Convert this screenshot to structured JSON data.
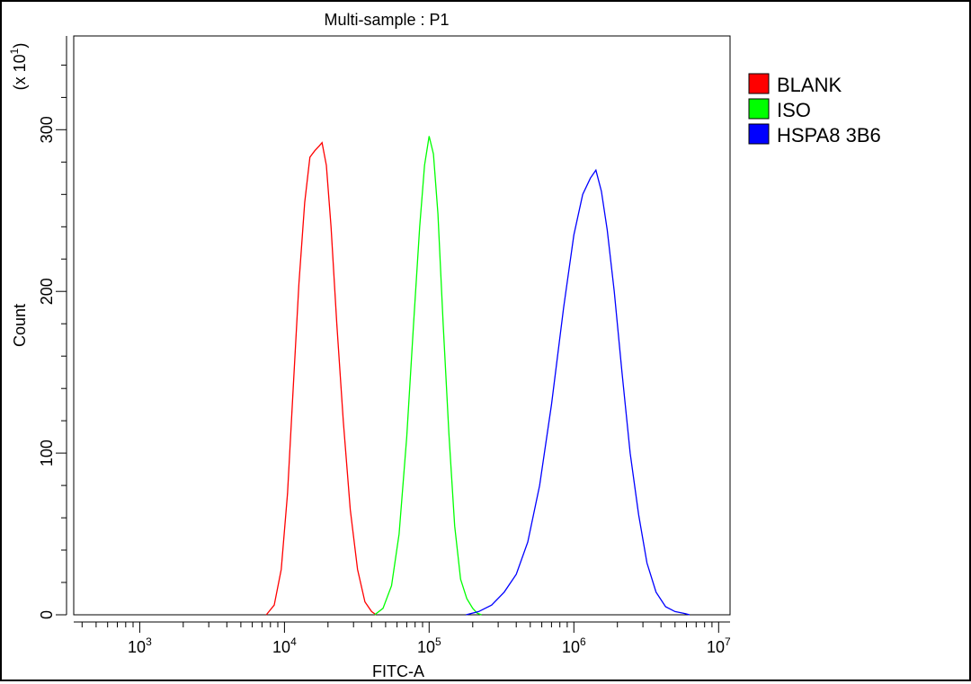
{
  "chart_data": {
    "type": "line",
    "title": "Multi-sample : P1",
    "xlabel": "FITC-A",
    "ylabel": "Count",
    "y_multiplier_label": "(x 10",
    "y_multiplier_exp": "1",
    "y_multiplier_close": ")",
    "x_scale": "log",
    "xlim": [
      350,
      12000000
    ],
    "ylim": [
      0,
      358
    ],
    "x_ticks": [
      {
        "value": 1000,
        "base": "10",
        "exp": "3"
      },
      {
        "value": 10000,
        "base": "10",
        "exp": "4"
      },
      {
        "value": 100000,
        "base": "10",
        "exp": "5"
      },
      {
        "value": 1000000,
        "base": "10",
        "exp": "6"
      },
      {
        "value": 10000000,
        "base": "10",
        "exp": "7"
      }
    ],
    "y_ticks": [
      {
        "value": 0,
        "label": "0"
      },
      {
        "value": 100,
        "label": "100"
      },
      {
        "value": 200,
        "label": "200"
      },
      {
        "value": 300,
        "label": "300"
      }
    ],
    "grid": false,
    "legend_position": "right",
    "series": [
      {
        "name": "BLANK",
        "color": "#ff0000",
        "x": [
          7500,
          8500,
          9500,
          10500,
          11500,
          12600,
          13800,
          15000,
          16200,
          17400,
          18200,
          19500,
          21000,
          23000,
          25500,
          28500,
          32000,
          36000,
          40000,
          43000
        ],
        "y": [
          0,
          6,
          28,
          75,
          140,
          205,
          255,
          283,
          287,
          290,
          292,
          278,
          240,
          180,
          120,
          65,
          28,
          8,
          2,
          0
        ]
      },
      {
        "name": "ISO",
        "color": "#00ff00",
        "x": [
          42000,
          48000,
          55000,
          62000,
          70000,
          78000,
          86000,
          93000,
          100000,
          107000,
          115000,
          125000,
          137000,
          150000,
          165000,
          182000,
          200000,
          215000,
          230000
        ],
        "y": [
          0,
          4,
          18,
          50,
          110,
          180,
          240,
          278,
          296,
          285,
          248,
          180,
          112,
          55,
          22,
          10,
          4,
          1,
          0
        ]
      },
      {
        "name": "HSPA8 3B6",
        "color": "#0000ff",
        "x": [
          180000,
          220000,
          270000,
          330000,
          400000,
          480000,
          580000,
          700000,
          850000,
          1000000,
          1150000,
          1300000,
          1420000,
          1550000,
          1700000,
          1900000,
          2150000,
          2450000,
          2800000,
          3200000,
          3700000,
          4300000,
          5000000,
          5700000,
          6300000
        ],
        "y": [
          0,
          2,
          6,
          14,
          25,
          45,
          80,
          130,
          190,
          235,
          260,
          270,
          275,
          262,
          238,
          200,
          150,
          100,
          62,
          32,
          14,
          5,
          2,
          1,
          0
        ]
      }
    ]
  }
}
